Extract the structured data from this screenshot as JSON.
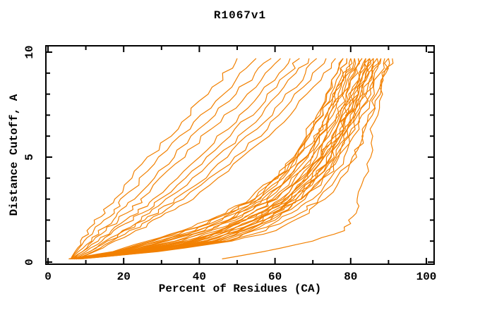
{
  "chart_data": {
    "type": "line",
    "title": "R1067v1",
    "xlabel": "Percent of Residues (CA)",
    "ylabel": "Distance Cutoff, A",
    "xlim": [
      0,
      102.5
    ],
    "ylim": [
      0,
      10.4
    ],
    "grid": false,
    "legend": "none",
    "background": "#ffffff",
    "axis_color": "#000000",
    "line_color": "#f28000",
    "x_major_ticks": [
      0,
      20,
      40,
      60,
      80,
      100
    ],
    "x_minor_ticks": [
      10,
      30,
      50,
      70,
      90
    ],
    "y_major_ticks": [
      0,
      5,
      10
    ],
    "y_minor_ticks": [
      1,
      2,
      3,
      4,
      6,
      7,
      8,
      9
    ],
    "cutoffs": [
      0.15,
      0.5,
      1,
      1.5,
      2,
      2.5,
      3,
      4,
      5,
      6,
      7,
      8,
      9,
      9.7
    ],
    "series_percents": [
      [
        6,
        7,
        9,
        11,
        13,
        15.5,
        18,
        22,
        27,
        32,
        37,
        42,
        47,
        50
      ],
      [
        6,
        7.5,
        10,
        12.5,
        15,
        17.5,
        20,
        25,
        30,
        35.5,
        41,
        46,
        51.5,
        55
      ],
      [
        6,
        8,
        11,
        14,
        17,
        20,
        23,
        28,
        33,
        38.5,
        44,
        49.5,
        55,
        59
      ],
      [
        6.5,
        9,
        12,
        15,
        18.5,
        22,
        25,
        30,
        35.5,
        41,
        47,
        52.5,
        58,
        61.5
      ],
      [
        6,
        9,
        13,
        17,
        21,
        24.5,
        28,
        34,
        40,
        45.5,
        51,
        56,
        61,
        64
      ],
      [
        6.5,
        10,
        14,
        18,
        22,
        26,
        29.5,
        36,
        42,
        48,
        53.5,
        58.5,
        63.5,
        66.5
      ],
      [
        7,
        11,
        15.5,
        20,
        24,
        28,
        32,
        38.5,
        45,
        50.5,
        56,
        61,
        66,
        69
      ],
      [
        7,
        11,
        16,
        21,
        25.5,
        30,
        34,
        41,
        47,
        53,
        58.5,
        63.5,
        68,
        71
      ],
      [
        7.5,
        12,
        17,
        22,
        27,
        31.5,
        36,
        43,
        49.5,
        55.5,
        61,
        66,
        70.5,
        73.5
      ],
      [
        7.5,
        12.5,
        18,
        23.5,
        28.5,
        33.5,
        38,
        45.5,
        52,
        58,
        63.5,
        68.5,
        73,
        76
      ],
      [
        7,
        24,
        40,
        48,
        54,
        59,
        63,
        68.5,
        72.5,
        75.5,
        78.5,
        80.5,
        82.5,
        84
      ],
      [
        7,
        25,
        42,
        50,
        56,
        60.5,
        64.5,
        70,
        74,
        77,
        79.5,
        81.5,
        83.5,
        85
      ],
      [
        7.5,
        26,
        44,
        51.5,
        57.5,
        62,
        66,
        71.5,
        75,
        78,
        80.5,
        82.5,
        84.5,
        86
      ],
      [
        6.5,
        23,
        38,
        46,
        52.5,
        57.5,
        61.5,
        67.5,
        71.5,
        74.5,
        77,
        79.5,
        81.5,
        83
      ],
      [
        6.5,
        22,
        36,
        44.5,
        50.5,
        56,
        60,
        66,
        70,
        73.5,
        76,
        78.5,
        80.5,
        82
      ],
      [
        6,
        21,
        34,
        42.5,
        49,
        54,
        58.5,
        64.5,
        69,
        72,
        75,
        77,
        79.5,
        81
      ],
      [
        6,
        20,
        32,
        40.5,
        47.5,
        52.5,
        57,
        63,
        67.5,
        71,
        74,
        76,
        78.5,
        80
      ],
      [
        6,
        19,
        30,
        39,
        45.5,
        51,
        55.5,
        62,
        66.5,
        69.5,
        72.5,
        75,
        77.5,
        79
      ],
      [
        5.5,
        18,
        28,
        37,
        44,
        49.5,
        54,
        60.5,
        65,
        68.5,
        71.5,
        74,
        76.5,
        78
      ],
      [
        7.5,
        27,
        45,
        52.5,
        58.5,
        63,
        67,
        72.5,
        76,
        79,
        81.5,
        83.5,
        85.5,
        87
      ],
      [
        8,
        27.5,
        46,
        53.5,
        59.5,
        64,
        68,
        73.5,
        77,
        80,
        82.5,
        84.5,
        86.5,
        88
      ],
      [
        8,
        28,
        47,
        55,
        61,
        65.5,
        69.5,
        75,
        78.5,
        81,
        83.5,
        85.5,
        87.5,
        89
      ],
      [
        8.5,
        28.5,
        48,
        57,
        63.5,
        68,
        71.5,
        77,
        80.5,
        83,
        85,
        87,
        88.5,
        90
      ],
      [
        8.5,
        29,
        49,
        60,
        66,
        70,
        73,
        78,
        81,
        83.5,
        85.5,
        87.5,
        89.5,
        91
      ],
      [
        7,
        24.5,
        41,
        49,
        55.5,
        60.5,
        64.5,
        70.5,
        74.5,
        77.5,
        80,
        82.5,
        84.5,
        86
      ],
      [
        7,
        23.5,
        39,
        47.5,
        53.5,
        59,
        63,
        69,
        73,
        76.5,
        79,
        81.5,
        83.5,
        85
      ],
      [
        6.5,
        22.5,
        37,
        45.5,
        52,
        57,
        61.5,
        67.5,
        72,
        75,
        78,
        80,
        82.5,
        84
      ],
      [
        6.5,
        21.5,
        35,
        43.5,
        50.5,
        55.5,
        60,
        66,
        70.5,
        74,
        77,
        79,
        81.5,
        83
      ],
      [
        6,
        20.5,
        33,
        42,
        48.5,
        54,
        58.5,
        65,
        69.5,
        72.5,
        75.5,
        78,
        80.5,
        82
      ],
      [
        6,
        19.5,
        31,
        40,
        47,
        52.5,
        57,
        63.5,
        68,
        71.5,
        74.5,
        77,
        79.5,
        81
      ],
      [
        5.5,
        18.5,
        29,
        38,
        45.5,
        51,
        55.5,
        62,
        66.5,
        70.5,
        73.5,
        76,
        78.5,
        80
      ],
      [
        5.5,
        17.5,
        27,
        36.5,
        43.5,
        49.5,
        54,
        61,
        65.5,
        69,
        72,
        75,
        77.5,
        79
      ],
      [
        5.5,
        17,
        26,
        35.5,
        42.5,
        48.5,
        53,
        60,
        64.5,
        68,
        71,
        74,
        76.5,
        78
      ],
      [
        7.5,
        25.5,
        43,
        51,
        57,
        62,
        66,
        71.5,
        75.5,
        78.5,
        81.5,
        83.5,
        85.5,
        87
      ],
      [
        7.5,
        26,
        44,
        52,
        58,
        63,
        67,
        72.5,
        76.5,
        79.5,
        82.5,
        84.5,
        86.5,
        88
      ],
      [
        7,
        25,
        42,
        50,
        56,
        61,
        65,
        70.5,
        74.5,
        77.5,
        80.5,
        82.5,
        84.5,
        86
      ],
      [
        7,
        24,
        40,
        48,
        54.5,
        59.5,
        63.5,
        69.5,
        73.5,
        76.5,
        79,
        81.5,
        83.5,
        85
      ],
      [
        6.5,
        23,
        38,
        46.5,
        52.5,
        58,
        62,
        68,
        72,
        75.5,
        78,
        80.5,
        82.5,
        84
      ],
      [
        46,
        57,
        70,
        78,
        80,
        81.5,
        82.3,
        83.8,
        84.8,
        85.6,
        86.5,
        87.6,
        89,
        90
      ]
    ]
  }
}
